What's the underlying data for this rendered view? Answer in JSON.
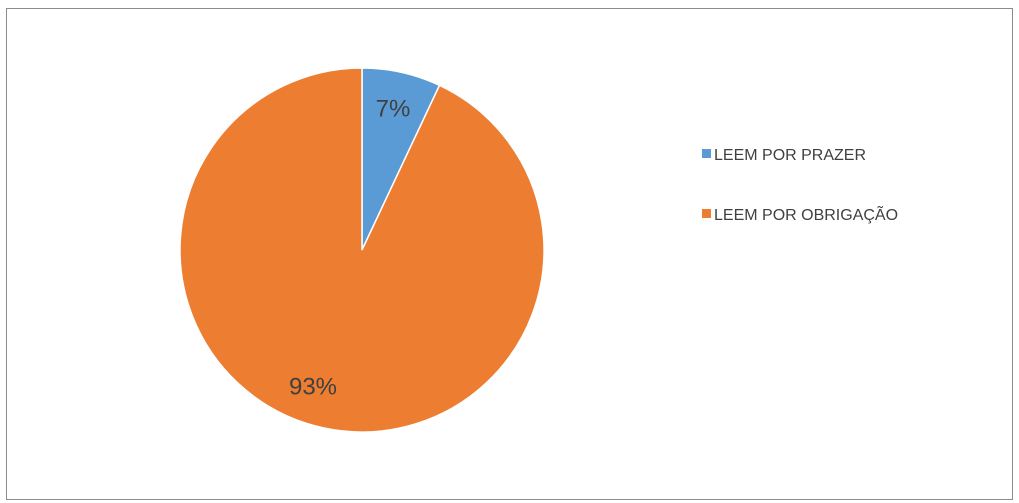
{
  "chart_data": {
    "type": "pie",
    "categories": [
      "LEEM POR PRAZER",
      "LEEM POR OBRIGAÇÃO"
    ],
    "values": [
      7,
      93
    ],
    "labels": [
      "7%",
      "93%"
    ],
    "colors": [
      "#5b9bd5",
      "#ed7d31"
    ],
    "title": "",
    "legend": "right",
    "start_angle": "top, clockwise"
  }
}
